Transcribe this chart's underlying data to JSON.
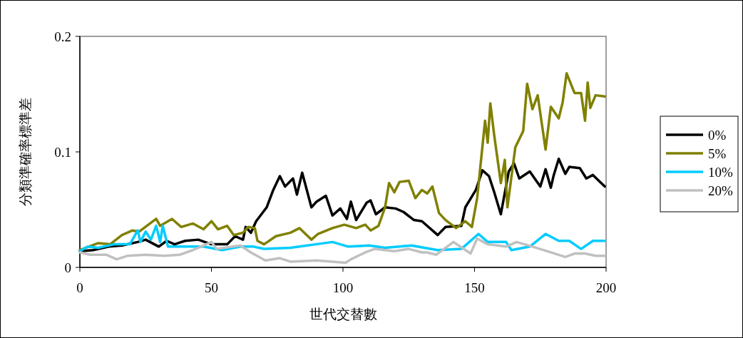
{
  "chart_data": {
    "type": "line",
    "xlabel": "世代交替數",
    "ylabel": "分類準確率標準差",
    "xlim": [
      0,
      200
    ],
    "xticks": [
      0,
      50,
      100,
      150,
      200
    ],
    "ylim": [
      0,
      0.2
    ],
    "yticks": [
      0,
      0.1,
      0.2
    ],
    "legend": "right",
    "grid": false,
    "marker": "none",
    "line_style": "solid",
    "series": [
      {
        "name": "0%",
        "color": "#000000",
        "x": [
          0,
          5,
          11,
          16,
          22,
          25,
          30,
          33,
          36,
          40,
          45,
          50,
          56,
          59,
          62,
          63,
          65,
          67,
          71,
          73.5,
          76,
          78,
          81,
          82.5,
          84.5,
          88,
          90,
          93.5,
          96,
          99,
          101.5,
          103,
          105,
          109,
          110.5,
          112.5,
          116,
          120,
          123,
          127,
          130,
          136,
          139,
          145,
          146.5,
          150.5,
          153,
          155.5,
          157.5,
          160,
          163,
          165,
          167,
          171,
          175,
          177,
          179,
          180,
          182,
          184.5,
          186,
          190,
          192.5,
          195,
          199.5
        ],
        "values": [
          0.014,
          0.015,
          0.018,
          0.019,
          0.022,
          0.024,
          0.018,
          0.023,
          0.02,
          0.023,
          0.024,
          0.02,
          0.02,
          0.027,
          0.024,
          0.035,
          0.03,
          0.04,
          0.052,
          0.067,
          0.079,
          0.07,
          0.077,
          0.063,
          0.082,
          0.052,
          0.057,
          0.062,
          0.045,
          0.051,
          0.042,
          0.057,
          0.041,
          0.056,
          0.058,
          0.046,
          0.052,
          0.051,
          0.048,
          0.041,
          0.04,
          0.028,
          0.035,
          0.036,
          0.052,
          0.067,
          0.084,
          0.079,
          0.065,
          0.046,
          0.083,
          0.09,
          0.077,
          0.083,
          0.07,
          0.085,
          0.069,
          0.079,
          0.094,
          0.081,
          0.087,
          0.086,
          0.077,
          0.08,
          0.07
        ]
      },
      {
        "name": "5%",
        "color": "#808000",
        "x": [
          0,
          7,
          11.5,
          16,
          20,
          22.5,
          29,
          30.5,
          35,
          38.5,
          43,
          47,
          50,
          52.5,
          56,
          58.5,
          62,
          64,
          66.5,
          67.5,
          70,
          74.5,
          80,
          83.5,
          88,
          90.5,
          96,
          100.5,
          105,
          108.5,
          110.5,
          113.5,
          116,
          117.5,
          119.5,
          121.5,
          125,
          127.5,
          130,
          132,
          134,
          136.5,
          139,
          143,
          146.5,
          149,
          151,
          154,
          155,
          156,
          157.5,
          160,
          161.5,
          162.5,
          165.5,
          168.5,
          170,
          172,
          174,
          177,
          179,
          182,
          183.5,
          185,
          188,
          190.5,
          192,
          193,
          194,
          196,
          199.5
        ],
        "values": [
          0.015,
          0.021,
          0.02,
          0.028,
          0.032,
          0.031,
          0.042,
          0.036,
          0.042,
          0.035,
          0.038,
          0.033,
          0.04,
          0.033,
          0.036,
          0.028,
          0.03,
          0.035,
          0.034,
          0.023,
          0.02,
          0.027,
          0.03,
          0.034,
          0.024,
          0.029,
          0.034,
          0.037,
          0.034,
          0.037,
          0.032,
          0.036,
          0.052,
          0.073,
          0.065,
          0.074,
          0.075,
          0.06,
          0.067,
          0.064,
          0.07,
          0.047,
          0.041,
          0.034,
          0.04,
          0.035,
          0.06,
          0.127,
          0.108,
          0.142,
          0.114,
          0.073,
          0.093,
          0.052,
          0.104,
          0.118,
          0.159,
          0.137,
          0.149,
          0.102,
          0.139,
          0.129,
          0.143,
          0.168,
          0.151,
          0.151,
          0.127,
          0.16,
          0.138,
          0.149,
          0.148
        ]
      },
      {
        "name": "10%",
        "color": "#00ccff",
        "x": [
          0,
          3,
          7,
          13,
          19,
          22,
          23,
          25,
          27,
          29,
          30.5,
          31.5,
          33.5,
          40,
          47,
          54,
          61,
          66,
          70,
          80,
          96,
          102,
          110,
          116,
          126,
          136,
          145,
          151.5,
          155,
          162,
          164,
          171,
          177,
          182,
          186,
          190.5,
          195,
          199.5
        ],
        "values": [
          0.014,
          0.018,
          0.017,
          0.02,
          0.02,
          0.032,
          0.022,
          0.031,
          0.024,
          0.036,
          0.022,
          0.036,
          0.018,
          0.018,
          0.018,
          0.015,
          0.018,
          0.018,
          0.016,
          0.017,
          0.022,
          0.018,
          0.019,
          0.017,
          0.019,
          0.015,
          0.016,
          0.029,
          0.022,
          0.022,
          0.015,
          0.018,
          0.029,
          0.023,
          0.023,
          0.016,
          0.023,
          0.023
        ]
      },
      {
        "name": "20%",
        "color": "#c0c0c0",
        "x": [
          0,
          4,
          10,
          14,
          18,
          25,
          32,
          38,
          43,
          50,
          52,
          61,
          65,
          70.5,
          76,
          80,
          90,
          96,
          101,
          103,
          108.5,
          112,
          119.5,
          125,
          130,
          132,
          135.5,
          142,
          148.5,
          151,
          155,
          162,
          166,
          172,
          179,
          184.5,
          188,
          192,
          196,
          199.5
        ],
        "values": [
          0.013,
          0.011,
          0.011,
          0.007,
          0.01,
          0.011,
          0.01,
          0.011,
          0.015,
          0.022,
          0.016,
          0.019,
          0.013,
          0.006,
          0.008,
          0.005,
          0.006,
          0.005,
          0.004,
          0.007,
          0.013,
          0.016,
          0.014,
          0.016,
          0.013,
          0.013,
          0.011,
          0.022,
          0.012,
          0.025,
          0.02,
          0.018,
          0.022,
          0.018,
          0.013,
          0.009,
          0.012,
          0.012,
          0.01,
          0.01
        ]
      }
    ]
  }
}
